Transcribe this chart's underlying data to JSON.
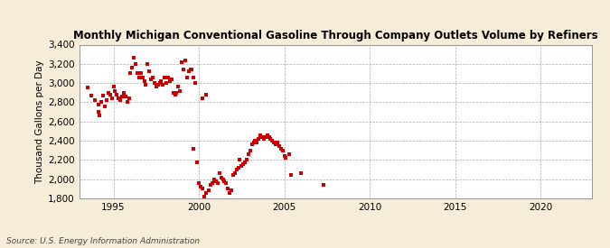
{
  "title": "Monthly Michigan Conventional Gasoline Through Company Outlets Volume by Refiners",
  "ylabel": "Thousand Gallons per Day",
  "source": "Source: U.S. Energy Information Administration",
  "background_color": "#f5edd8",
  "plot_bg_color": "#ffffff",
  "marker_color": "#cc0000",
  "marker_size": 10,
  "xlim": [
    1993.0,
    2023.0
  ],
  "ylim": [
    1800,
    3400
  ],
  "yticks": [
    1800,
    2000,
    2200,
    2400,
    2600,
    2800,
    3000,
    3200,
    3400
  ],
  "xticks": [
    1995,
    2000,
    2005,
    2010,
    2015,
    2020
  ],
  "cluster1_x": [
    1993.5,
    1993.7,
    1993.9,
    1994.1,
    1994.1,
    1994.2,
    1994.3,
    1994.4,
    1994.5,
    1994.6,
    1994.7,
    1994.8,
    1994.9,
    1995.0,
    1995.1,
    1995.2,
    1995.3,
    1995.4,
    1995.5,
    1995.6,
    1995.7,
    1995.8,
    1995.9,
    1996.0,
    1996.1,
    1996.2,
    1996.3,
    1996.4,
    1996.5,
    1996.6,
    1996.7,
    1996.8,
    1996.9,
    1997.0,
    1997.1,
    1997.2,
    1997.3,
    1997.4,
    1997.5,
    1997.6,
    1997.7,
    1997.8,
    1997.9,
    1998.0,
    1998.1,
    1998.2,
    1998.3,
    1998.4,
    1998.5,
    1998.6,
    1998.7,
    1998.8,
    1998.9,
    1999.0,
    1999.1,
    1999.2,
    1999.3,
    1999.4,
    1999.5,
    1999.6,
    1999.7,
    1999.8,
    2000.2,
    2000.4
  ],
  "cluster1_y": [
    2950,
    2870,
    2820,
    2780,
    2700,
    2660,
    2800,
    2870,
    2760,
    2820,
    2900,
    2880,
    2840,
    2960,
    2920,
    2880,
    2840,
    2820,
    2860,
    2900,
    2860,
    2800,
    2840,
    3100,
    3160,
    3260,
    3200,
    3100,
    3060,
    3100,
    3060,
    3020,
    2980,
    3200,
    3120,
    3040,
    3060,
    3000,
    2960,
    2980,
    3000,
    3020,
    2980,
    3060,
    3000,
    3060,
    3020,
    3040,
    2900,
    2880,
    2900,
    2960,
    2920,
    3220,
    3140,
    3240,
    3060,
    3120,
    3140,
    3140,
    3060,
    3000,
    2840,
    2880
  ],
  "cluster2_x": [
    1999.7,
    1999.9,
    2000.0,
    2000.1,
    2000.2,
    2000.3,
    2000.4,
    2000.6,
    2000.7,
    2000.8,
    2000.9,
    2001.0,
    2001.1,
    2001.2,
    2001.3,
    2001.4,
    2001.5,
    2001.6,
    2001.7,
    2001.8,
    2001.9,
    2002.0,
    2002.1,
    2002.2,
    2002.3,
    2002.4,
    2002.5,
    2002.6,
    2002.7,
    2002.8,
    2002.9,
    2003.0,
    2003.1,
    2003.2,
    2003.3,
    2003.4,
    2003.5,
    2003.6,
    2003.7,
    2003.8,
    2003.9,
    2004.0,
    2004.1,
    2004.2,
    2004.3,
    2004.4,
    2004.5,
    2004.6,
    2004.7,
    2004.8,
    2004.9,
    2005.0,
    2005.1,
    2005.3,
    2005.4,
    2006.0,
    2007.3
  ],
  "cluster2_y": [
    2320,
    2180,
    1960,
    1920,
    1900,
    1820,
    1860,
    1880,
    1940,
    1960,
    2000,
    1980,
    1960,
    2060,
    2020,
    2000,
    1980,
    1960,
    1900,
    1860,
    1880,
    2040,
    2060,
    2100,
    2120,
    2200,
    2140,
    2160,
    2180,
    2200,
    2260,
    2300,
    2360,
    2380,
    2400,
    2380,
    2420,
    2460,
    2440,
    2420,
    2440,
    2460,
    2440,
    2420,
    2400,
    2380,
    2360,
    2380,
    2340,
    2320,
    2300,
    2240,
    2220,
    2260,
    2040,
    2060,
    1940
  ]
}
